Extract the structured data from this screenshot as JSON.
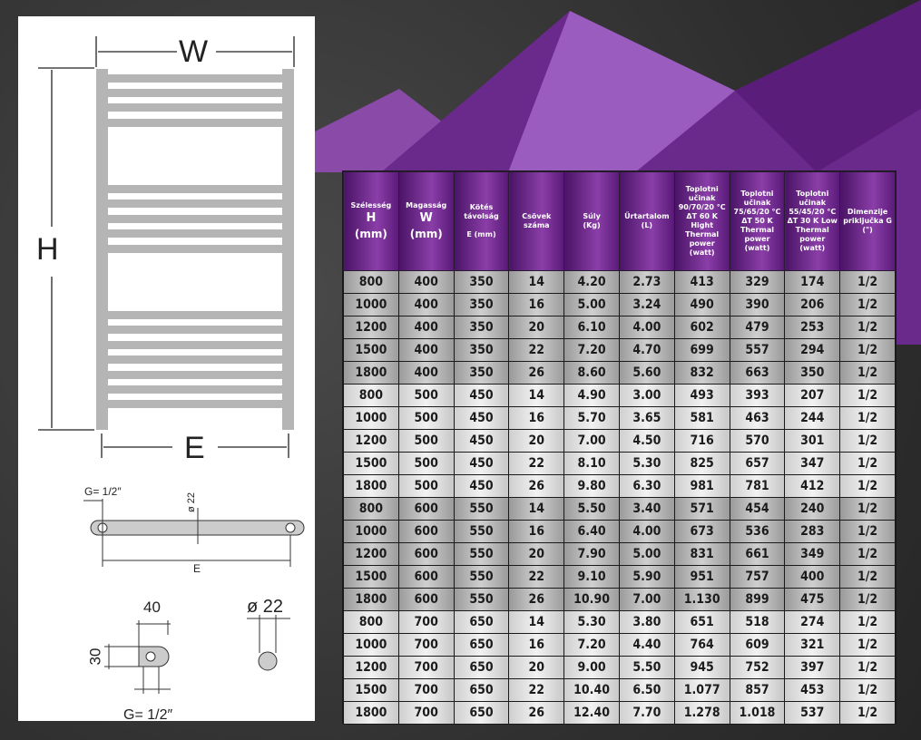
{
  "diagram": {
    "width_label": "W",
    "height_label": "H",
    "centers_label": "E",
    "connection_label_top": "G= 1/2″",
    "tube_diameter_label": "ø 22",
    "bottom_centers_label": "E",
    "bracket_width": "40",
    "bracket_height": "30",
    "connection_label_bottom": "G= 1/2″",
    "tube_section_label": "ø 22"
  },
  "colors": {
    "header_purple": "#6a2288",
    "accent_purple": "#9b4fc0"
  },
  "table": {
    "headers": [
      {
        "line1": "Szélesség",
        "big": "H",
        "unit": "(mm)"
      },
      {
        "line1": "Magasság",
        "big": "W",
        "unit": "(mm)"
      },
      {
        "line1": "Kötés távolság",
        "sub": "E (mm)"
      },
      {
        "line1": "Csövek száma"
      },
      {
        "line1": "Súly",
        "sub": "(Kg)"
      },
      {
        "line1": "Űrtartalom",
        "sub": "(L)"
      },
      {
        "line1": "Toplotni učinak 90/70/20 °C ΔT 60 K Hight Thermal power (watt)"
      },
      {
        "line1": "Toplotni učinak 75/65/20 °C ΔT 50 K Thermal power (watt)"
      },
      {
        "line1": "Toplotni učinak 55/45/20 °C ΔT 30 K Low Thermal power (watt)"
      },
      {
        "line1": "Dimenzije priključka G (\")"
      }
    ],
    "rows": [
      [
        "800",
        "400",
        "350",
        "14",
        "4.20",
        "2.73",
        "413",
        "329",
        "174",
        "1/2"
      ],
      [
        "1000",
        "400",
        "350",
        "16",
        "5.00",
        "3.24",
        "490",
        "390",
        "206",
        "1/2"
      ],
      [
        "1200",
        "400",
        "350",
        "20",
        "6.10",
        "4.00",
        "602",
        "479",
        "253",
        "1/2"
      ],
      [
        "1500",
        "400",
        "350",
        "22",
        "7.20",
        "4.70",
        "699",
        "557",
        "294",
        "1/2"
      ],
      [
        "1800",
        "400",
        "350",
        "26",
        "8.60",
        "5.60",
        "832",
        "663",
        "350",
        "1/2"
      ],
      [
        "800",
        "500",
        "450",
        "14",
        "4.90",
        "3.00",
        "493",
        "393",
        "207",
        "1/2"
      ],
      [
        "1000",
        "500",
        "450",
        "16",
        "5.70",
        "3.65",
        "581",
        "463",
        "244",
        "1/2"
      ],
      [
        "1200",
        "500",
        "450",
        "20",
        "7.00",
        "4.50",
        "716",
        "570",
        "301",
        "1/2"
      ],
      [
        "1500",
        "500",
        "450",
        "22",
        "8.10",
        "5.30",
        "825",
        "657",
        "347",
        "1/2"
      ],
      [
        "1800",
        "500",
        "450",
        "26",
        "9.80",
        "6.30",
        "981",
        "781",
        "412",
        "1/2"
      ],
      [
        "800",
        "600",
        "550",
        "14",
        "5.50",
        "3.40",
        "571",
        "454",
        "240",
        "1/2"
      ],
      [
        "1000",
        "600",
        "550",
        "16",
        "6.40",
        "4.00",
        "673",
        "536",
        "283",
        "1/2"
      ],
      [
        "1200",
        "600",
        "550",
        "20",
        "7.90",
        "5.00",
        "831",
        "661",
        "349",
        "1/2"
      ],
      [
        "1500",
        "600",
        "550",
        "22",
        "9.10",
        "5.90",
        "951",
        "757",
        "400",
        "1/2"
      ],
      [
        "1800",
        "600",
        "550",
        "26",
        "10.90",
        "7.00",
        "1.130",
        "899",
        "475",
        "1/2"
      ],
      [
        "800",
        "700",
        "650",
        "14",
        "5.30",
        "3.80",
        "651",
        "518",
        "274",
        "1/2"
      ],
      [
        "1000",
        "700",
        "650",
        "16",
        "7.20",
        "4.40",
        "764",
        "609",
        "321",
        "1/2"
      ],
      [
        "1200",
        "700",
        "650",
        "20",
        "9.00",
        "5.50",
        "945",
        "752",
        "397",
        "1/2"
      ],
      [
        "1500",
        "700",
        "650",
        "22",
        "10.40",
        "6.50",
        "1.077",
        "857",
        "453",
        "1/2"
      ],
      [
        "1800",
        "700",
        "650",
        "26",
        "12.40",
        "7.70",
        "1.278",
        "1.018",
        "537",
        "1/2"
      ]
    ]
  }
}
